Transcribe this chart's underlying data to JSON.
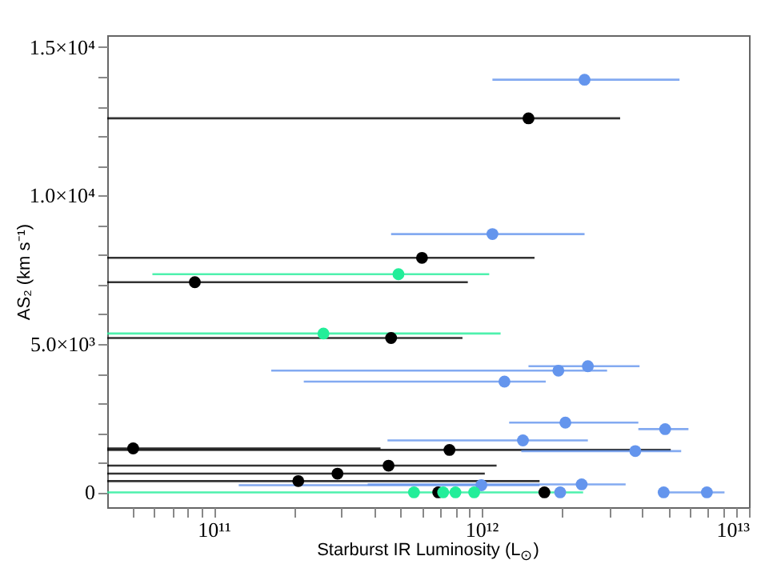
{
  "chart_data": {
    "type": "scatter",
    "xlabel": "Starburst IR Luminosity (L$_{⊙}$)",
    "ylabel": "AS₂ (km s⁻¹)",
    "log": "x",
    "grid": false,
    "marker": "circle",
    "xlim": [
      40000000000.0,
      10000000000000.0
    ],
    "xticks": [
      {
        "value": 50000000000.0,
        "label": null
      },
      {
        "value": 60000000000.0,
        "label": null
      },
      {
        "value": 70000000000.0,
        "label": null
      },
      {
        "value": 80000000000.0,
        "label": null
      },
      {
        "value": 90000000000.0,
        "label": null
      },
      {
        "value": 100000000000.0,
        "label": "10¹¹"
      },
      {
        "value": 200000000000.0,
        "label": null
      },
      {
        "value": 300000000000.0,
        "label": null
      },
      {
        "value": 400000000000.0,
        "label": null
      },
      {
        "value": 500000000000.0,
        "label": null
      },
      {
        "value": 600000000000.0,
        "label": null
      },
      {
        "value": 700000000000.0,
        "label": null
      },
      {
        "value": 800000000000.0,
        "label": null
      },
      {
        "value": 900000000000.0,
        "label": null
      },
      {
        "value": 1000000000000.0,
        "label": "10¹²"
      },
      {
        "value": 2000000000000.0,
        "label": null
      },
      {
        "value": 3000000000000.0,
        "label": null
      },
      {
        "value": 4000000000000.0,
        "label": null
      },
      {
        "value": 5000000000000.0,
        "label": null
      },
      {
        "value": 6000000000000.0,
        "label": null
      },
      {
        "value": 7000000000000.0,
        "label": null
      },
      {
        "value": 8000000000000.0,
        "label": null
      },
      {
        "value": 9000000000000.0,
        "label": null
      },
      {
        "value": 10000000000000.0,
        "label": "10¹³"
      }
    ],
    "ylim": [
      -500,
      15400
    ],
    "yticks": [
      {
        "value": 0,
        "label": "0"
      },
      {
        "value": 1000,
        "label": null
      },
      {
        "value": 2000,
        "label": null
      },
      {
        "value": 3000,
        "label": null
      },
      {
        "value": 4000,
        "label": null
      },
      {
        "value": 5000,
        "label": "5.0×10³"
      },
      {
        "value": 6000,
        "label": null
      },
      {
        "value": 7000,
        "label": null
      },
      {
        "value": 8000,
        "label": null
      },
      {
        "value": 9000,
        "label": null
      },
      {
        "value": 10000,
        "label": "1.0×10⁴"
      },
      {
        "value": 11000,
        "label": null
      },
      {
        "value": 12000,
        "label": null
      },
      {
        "value": 13000,
        "label": null
      },
      {
        "value": 14000,
        "label": null
      },
      {
        "value": 15000,
        "label": "1.5×10⁴"
      }
    ],
    "series": [
      {
        "color": "#000000",
        "x": [
          1500000000000.0,
          600000000000.0,
          85000000000.0,
          460000000000.0,
          50000000000.0,
          760000000000.0,
          450000000000.0,
          290000000000.0,
          207000000000.0,
          690000000000.0,
          1720000000000.0
        ],
        "values": [
          12600,
          7900,
          7080,
          5200,
          1480,
          1430,
          900,
          630,
          380,
          0,
          0
        ],
        "xerrors": [
          [
            40000000000.0,
            3300000000000.0
          ],
          [
            40000000000.0,
            1580000000000.0
          ],
          [
            40000000000.0,
            890000000000.0
          ],
          [
            40000000000.0,
            850000000000.0
          ],
          [
            40000000000.0,
            420000000000.0
          ],
          [
            40000000000.0,
            5100000000000.0
          ],
          [
            40000000000.0,
            1140000000000.0
          ],
          [
            40000000000.0,
            1030000000000.0
          ],
          [
            40000000000.0,
            1650000000000.0
          ],
          null,
          null
        ]
      },
      {
        "color": "#6495ed",
        "x": [
          2430000000000.0,
          1100000000000.0,
          2500000000000.0,
          1940000000000.0,
          1220000000000.0,
          2060000000000.0,
          4860000000000.0,
          1430000000000.0,
          3760000000000.0,
          1000000000000.0,
          2370000000000.0,
          1970000000000.0,
          4800000000000.0,
          6960000000000.0
        ],
        "values": [
          13900,
          8700,
          4250,
          4100,
          3730,
          2350,
          2130,
          1750,
          1390,
          240,
          270,
          0,
          0,
          0
        ],
        "xerrors": [
          [
            1100000000000.0,
            5500000000000.0
          ],
          [
            460000000000.0,
            2430000000000.0
          ],
          [
            1500000000000.0,
            3900000000000.0
          ],
          [
            164000000000.0,
            2950000000000.0
          ],
          [
            217000000000.0,
            1740000000000.0
          ],
          [
            1270000000000.0,
            3860000000000.0
          ],
          [
            3860000000000.0,
            5940000000000.0
          ],
          [
            446000000000.0,
            2500000000000.0
          ],
          [
            1410000000000.0,
            5580000000000.0
          ],
          [
            124000000000.0,
            1650000000000.0
          ],
          [
            376000000000.0,
            3460000000000.0
          ],
          null,
          null,
          [
            5000000000000.0,
            8100000000000.0
          ]
        ]
      },
      {
        "color": "#22ee99",
        "x": [
          490000000000.0,
          257000000000.0,
          560000000000.0,
          720000000000.0,
          800000000000.0,
          940000000000.0
        ],
        "values": [
          7350,
          5350,
          0,
          0,
          0,
          0
        ],
        "xerrors": [
          [
            59000000000.0,
            1070000000000.0
          ],
          [
            40000000000.0,
            1180000000000.0
          ],
          [
            40000000000.0,
            2400000000000.0
          ],
          null,
          null,
          null
        ]
      }
    ]
  }
}
